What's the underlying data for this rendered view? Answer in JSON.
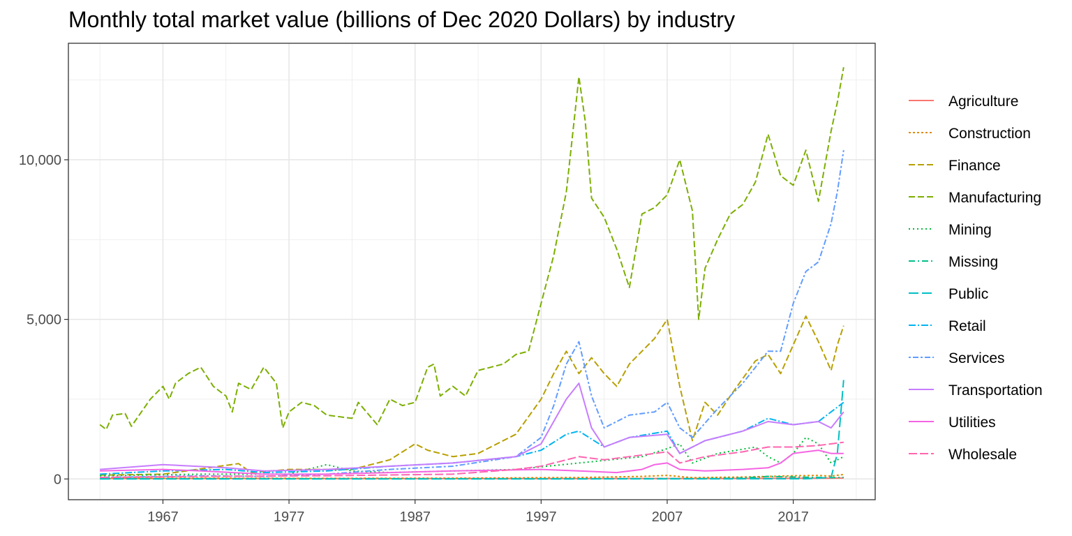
{
  "chart_data": {
    "type": "line",
    "title": "Monthly total market value (billions of Dec 2020 Dollars) by industry",
    "xlabel": "",
    "ylabel": "",
    "xlim": [
      1959.5,
      2023.5
    ],
    "ylim": [
      -650,
      13650
    ],
    "x_ticks": [
      1967,
      1977,
      1987,
      1997,
      2007,
      2017
    ],
    "x_tick_labels": [
      "1967",
      "1977",
      "1987",
      "1997",
      "2007",
      "2017"
    ],
    "y_ticks": [
      0,
      5000,
      10000
    ],
    "y_tick_labels": [
      "0",
      "5,000",
      "10,000"
    ],
    "grid": true,
    "legend_position": "right",
    "series": [
      {
        "name": "Agriculture",
        "color": "#F8766D",
        "dash": "",
        "points": [
          [
            1962,
            15
          ],
          [
            1970,
            15
          ],
          [
            1980,
            12
          ],
          [
            1990,
            10
          ],
          [
            2000,
            12
          ],
          [
            2010,
            15
          ],
          [
            2020,
            25
          ],
          [
            2021,
            30
          ]
        ]
      },
      {
        "name": "Construction",
        "color": "#DE8C00",
        "dash": "3,3",
        "points": [
          [
            1962,
            20
          ],
          [
            1970,
            25
          ],
          [
            1980,
            20
          ],
          [
            1990,
            25
          ],
          [
            2000,
            45
          ],
          [
            2005,
            80
          ],
          [
            2007,
            110
          ],
          [
            2009,
            40
          ],
          [
            2013,
            60
          ],
          [
            2017,
            100
          ],
          [
            2019,
            110
          ],
          [
            2020,
            90
          ],
          [
            2021,
            140
          ]
        ]
      },
      {
        "name": "Finance",
        "color": "#B79F00",
        "dash": "9,4",
        "points": [
          [
            1962,
            120
          ],
          [
            1967,
            150
          ],
          [
            1973,
            480
          ],
          [
            1974,
            200
          ],
          [
            1977,
            300
          ],
          [
            1982,
            300
          ],
          [
            1985,
            600
          ],
          [
            1987,
            1100
          ],
          [
            1988,
            900
          ],
          [
            1990,
            700
          ],
          [
            1992,
            800
          ],
          [
            1995,
            1400
          ],
          [
            1997,
            2500
          ],
          [
            1998,
            3300
          ],
          [
            1999,
            4000
          ],
          [
            2000,
            3300
          ],
          [
            2001,
            3800
          ],
          [
            2002,
            3300
          ],
          [
            2003,
            2900
          ],
          [
            2004,
            3600
          ],
          [
            2005,
            4000
          ],
          [
            2006,
            4400
          ],
          [
            2007,
            5000
          ],
          [
            2008,
            2900
          ],
          [
            2009,
            1200
          ],
          [
            2010,
            2400
          ],
          [
            2011,
            2000
          ],
          [
            2012,
            2600
          ],
          [
            2014,
            3700
          ],
          [
            2015,
            3900
          ],
          [
            2016,
            3300
          ],
          [
            2017,
            4200
          ],
          [
            2018,
            5100
          ],
          [
            2019,
            4300
          ],
          [
            2020,
            3400
          ],
          [
            2020.5,
            4200
          ],
          [
            2021,
            4800
          ]
        ]
      },
      {
        "name": "Manufacturing",
        "color": "#7CAE00",
        "dash": "9,4",
        "points": [
          [
            1962,
            1700
          ],
          [
            1962.5,
            1550
          ],
          [
            1963,
            2000
          ],
          [
            1964,
            2050
          ],
          [
            1964.5,
            1650
          ],
          [
            1966,
            2500
          ],
          [
            1967,
            2900
          ],
          [
            1967.5,
            2500
          ],
          [
            1968,
            3000
          ],
          [
            1969,
            3300
          ],
          [
            1970,
            3500
          ],
          [
            1971,
            2900
          ],
          [
            1972,
            2600
          ],
          [
            1972.5,
            2100
          ],
          [
            1973,
            3000
          ],
          [
            1974,
            2800
          ],
          [
            1975,
            3500
          ],
          [
            1976,
            3000
          ],
          [
            1976.5,
            1600
          ],
          [
            1977,
            2100
          ],
          [
            1978,
            2400
          ],
          [
            1979,
            2300
          ],
          [
            1980,
            2000
          ],
          [
            1982,
            1900
          ],
          [
            1982.5,
            2400
          ],
          [
            1984,
            1700
          ],
          [
            1985,
            2500
          ],
          [
            1986,
            2300
          ],
          [
            1987,
            2400
          ],
          [
            1988,
            3500
          ],
          [
            1988.5,
            3600
          ],
          [
            1989,
            2600
          ],
          [
            1990,
            2900
          ],
          [
            1991,
            2600
          ],
          [
            1992,
            3400
          ],
          [
            1994,
            3600
          ],
          [
            1995,
            3900
          ],
          [
            1996,
            4000
          ],
          [
            1997,
            5500
          ],
          [
            1998,
            7000
          ],
          [
            1999,
            9000
          ],
          [
            2000,
            12600
          ],
          [
            2000.5,
            11200
          ],
          [
            2001,
            8800
          ],
          [
            2002,
            8200
          ],
          [
            2003,
            7200
          ],
          [
            2004,
            6000
          ],
          [
            2005,
            8300
          ],
          [
            2006,
            8500
          ],
          [
            2007,
            8900
          ],
          [
            2008,
            10000
          ],
          [
            2009,
            8400
          ],
          [
            2009.5,
            5000
          ],
          [
            2010,
            6600
          ],
          [
            2011,
            7500
          ],
          [
            2012,
            8300
          ],
          [
            2013,
            8600
          ],
          [
            2014,
            9300
          ],
          [
            2015,
            10800
          ],
          [
            2016,
            9500
          ],
          [
            2017,
            9200
          ],
          [
            2018,
            10300
          ],
          [
            2019,
            8700
          ],
          [
            2020,
            10900
          ],
          [
            2020.5,
            11800
          ],
          [
            2021,
            12900
          ]
        ]
      },
      {
        "name": "Mining",
        "color": "#00BA38",
        "dash": "2,4",
        "points": [
          [
            1962,
            100
          ],
          [
            1970,
            150
          ],
          [
            1977,
            150
          ],
          [
            1980,
            450
          ],
          [
            1982,
            250
          ],
          [
            1985,
            200
          ],
          [
            1990,
            250
          ],
          [
            1995,
            300
          ],
          [
            2000,
            500
          ],
          [
            2005,
            700
          ],
          [
            2007,
            950
          ],
          [
            2008,
            1100
          ],
          [
            2009,
            500
          ],
          [
            2011,
            800
          ],
          [
            2014,
            1000
          ],
          [
            2015,
            700
          ],
          [
            2016,
            500
          ],
          [
            2017,
            800
          ],
          [
            2018,
            1300
          ],
          [
            2019,
            1100
          ],
          [
            2020,
            500
          ],
          [
            2021,
            700
          ]
        ]
      },
      {
        "name": "Missing",
        "color": "#00C08B",
        "dash": "9,4,2,4",
        "points": [
          [
            1962,
            5
          ],
          [
            1990,
            5
          ],
          [
            2000,
            5
          ],
          [
            2006,
            10
          ],
          [
            2010,
            10
          ],
          [
            2013,
            30
          ],
          [
            2015,
            80
          ],
          [
            2017,
            60
          ],
          [
            2020,
            40
          ],
          [
            2021,
            50
          ]
        ]
      },
      {
        "name": "Public",
        "color": "#00BFC4",
        "dash": "14,5",
        "points": [
          [
            1962,
            2
          ],
          [
            2000,
            2
          ],
          [
            2010,
            3
          ],
          [
            2018,
            5
          ],
          [
            2020,
            50
          ],
          [
            2020.5,
            800
          ],
          [
            2021,
            3100
          ]
        ]
      },
      {
        "name": "Retail",
        "color": "#00B4F0",
        "dash": "10,3,2,3",
        "points": [
          [
            1962,
            150
          ],
          [
            1967,
            250
          ],
          [
            1972,
            300
          ],
          [
            1975,
            200
          ],
          [
            1980,
            250
          ],
          [
            1985,
            400
          ],
          [
            1990,
            500
          ],
          [
            1995,
            700
          ],
          [
            1997,
            900
          ],
          [
            1999,
            1400
          ],
          [
            2000,
            1500
          ],
          [
            2002,
            1000
          ],
          [
            2004,
            1300
          ],
          [
            2007,
            1500
          ],
          [
            2008,
            800
          ],
          [
            2010,
            1200
          ],
          [
            2013,
            1500
          ],
          [
            2015,
            1900
          ],
          [
            2017,
            1700
          ],
          [
            2019,
            1800
          ],
          [
            2020,
            2100
          ],
          [
            2021,
            2400
          ]
        ]
      },
      {
        "name": "Services",
        "color": "#619CFF",
        "dash": "3,3,8,3",
        "points": [
          [
            1962,
            50
          ],
          [
            1970,
            100
          ],
          [
            1975,
            80
          ],
          [
            1980,
            150
          ],
          [
            1985,
            300
          ],
          [
            1990,
            400
          ],
          [
            1995,
            700
          ],
          [
            1997,
            1300
          ],
          [
            1998,
            2300
          ],
          [
            1999,
            3600
          ],
          [
            2000,
            4300
          ],
          [
            2001,
            2600
          ],
          [
            2002,
            1600
          ],
          [
            2004,
            2000
          ],
          [
            2006,
            2100
          ],
          [
            2007,
            2400
          ],
          [
            2008,
            1600
          ],
          [
            2009,
            1300
          ],
          [
            2011,
            2200
          ],
          [
            2013,
            3000
          ],
          [
            2015,
            4000
          ],
          [
            2016,
            4000
          ],
          [
            2017,
            5500
          ],
          [
            2018,
            6500
          ],
          [
            2019,
            6800
          ],
          [
            2020,
            8000
          ],
          [
            2020.5,
            9000
          ],
          [
            2021,
            10300
          ]
        ]
      },
      {
        "name": "Transportation",
        "color": "#C77CFF",
        "dash": "",
        "points": [
          [
            1962,
            300
          ],
          [
            1967,
            450
          ],
          [
            1972,
            350
          ],
          [
            1975,
            250
          ],
          [
            1980,
            300
          ],
          [
            1985,
            400
          ],
          [
            1990,
            500
          ],
          [
            1995,
            700
          ],
          [
            1997,
            1100
          ],
          [
            1999,
            2500
          ],
          [
            2000,
            3000
          ],
          [
            2001,
            1600
          ],
          [
            2002,
            1000
          ],
          [
            2004,
            1300
          ],
          [
            2007,
            1400
          ],
          [
            2008,
            800
          ],
          [
            2010,
            1200
          ],
          [
            2013,
            1500
          ],
          [
            2015,
            1800
          ],
          [
            2017,
            1700
          ],
          [
            2019,
            1800
          ],
          [
            2020,
            1600
          ],
          [
            2021,
            2100
          ]
        ]
      },
      {
        "name": "Utilities",
        "color": "#F564E3",
        "dash": "",
        "points": [
          [
            1962,
            250
          ],
          [
            1967,
            300
          ],
          [
            1970,
            250
          ],
          [
            1975,
            150
          ],
          [
            1980,
            150
          ],
          [
            1985,
            200
          ],
          [
            1990,
            250
          ],
          [
            1997,
            300
          ],
          [
            2000,
            250
          ],
          [
            2003,
            200
          ],
          [
            2005,
            300
          ],
          [
            2006,
            450
          ],
          [
            2007,
            500
          ],
          [
            2008,
            300
          ],
          [
            2010,
            250
          ],
          [
            2013,
            300
          ],
          [
            2015,
            350
          ],
          [
            2016,
            500
          ],
          [
            2017,
            800
          ],
          [
            2019,
            900
          ],
          [
            2020,
            800
          ],
          [
            2021,
            800
          ]
        ]
      },
      {
        "name": "Wholesale",
        "color": "#FF64B0",
        "dash": "12,4",
        "points": [
          [
            1962,
            50
          ],
          [
            1970,
            80
          ],
          [
            1980,
            100
          ],
          [
            1990,
            150
          ],
          [
            1995,
            300
          ],
          [
            1997,
            400
          ],
          [
            2000,
            700
          ],
          [
            2002,
            600
          ],
          [
            2005,
            750
          ],
          [
            2007,
            850
          ],
          [
            2008,
            500
          ],
          [
            2010,
            700
          ],
          [
            2013,
            850
          ],
          [
            2015,
            1000
          ],
          [
            2017,
            1000
          ],
          [
            2019,
            1050
          ],
          [
            2020,
            1100
          ],
          [
            2021,
            1150
          ]
        ]
      }
    ]
  }
}
